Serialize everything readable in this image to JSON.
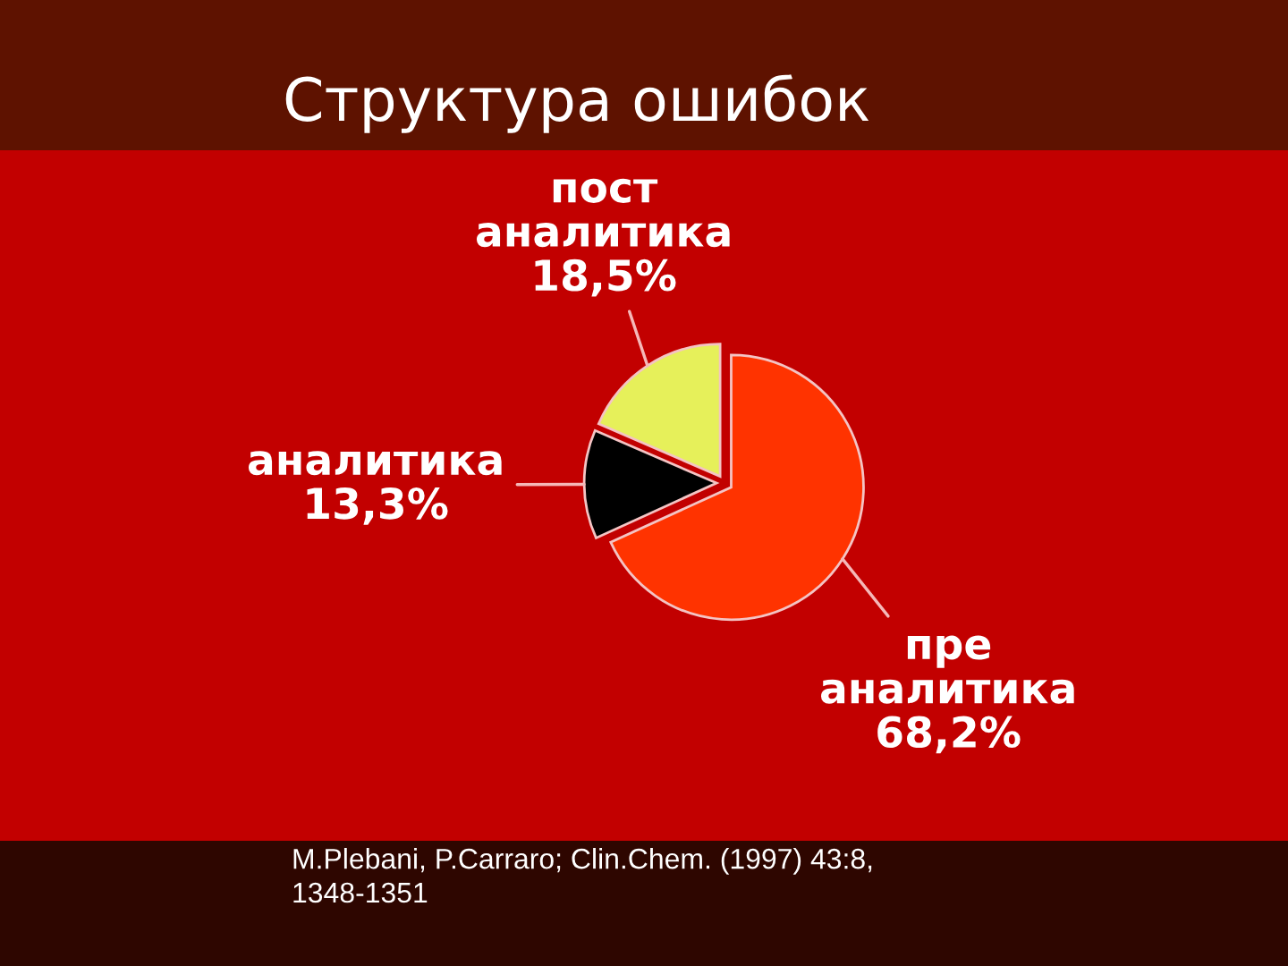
{
  "chart_data": {
    "type": "pie",
    "title": "Структура ошибок",
    "categories": [
      "пост аналитика",
      "аналитика",
      "пре аналитика"
    ],
    "values": [
      18.5,
      13.3,
      68.2
    ],
    "value_labels": [
      "18,5%",
      "13,3%",
      "68,2%"
    ],
    "colors": [
      "#e6f05a",
      "#000000",
      "#ff3300"
    ],
    "annotations": [
      "M.Plebani, P.Carraro; Clin.Chem. (1997) 43:8,\n1348-1351"
    ]
  }
}
